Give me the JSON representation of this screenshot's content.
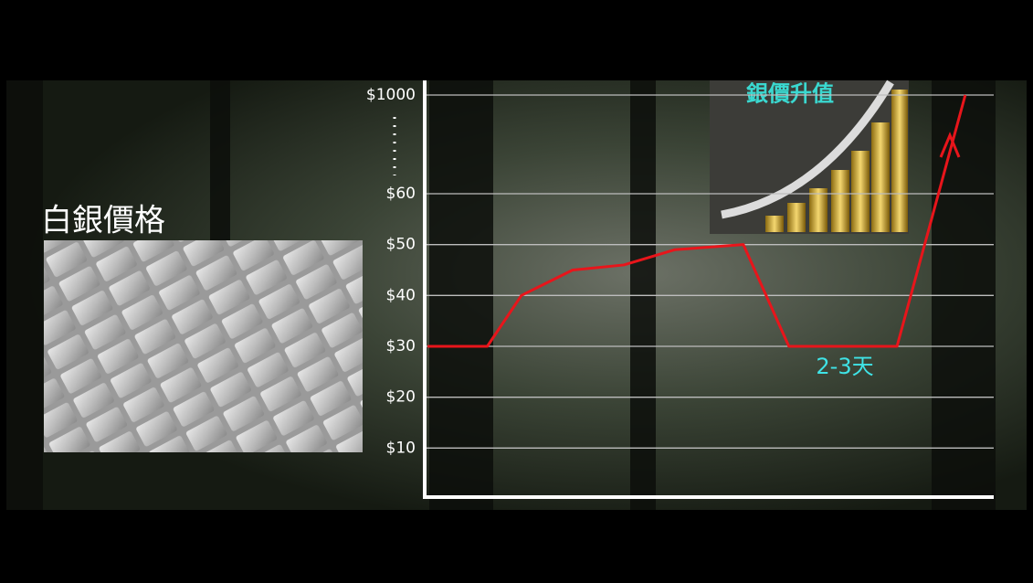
{
  "chart_data": {
    "type": "line",
    "title": "白銀價格",
    "inset_title": "銀價升值",
    "annotation": "2-3天",
    "x": [
      0.5,
      11,
      17,
      26,
      35,
      44,
      56,
      64,
      83,
      95
    ],
    "xlim": [
      0,
      100
    ],
    "series": [
      {
        "color": "#e8151b",
        "values": [
          30,
          30,
          40,
          45,
          46,
          49,
          50,
          30,
          30,
          1000
        ]
      }
    ],
    "ylim": [
      0,
      1000
    ],
    "axis_break": [
      60,
      1000
    ],
    "yticks": [
      {
        "value": 10,
        "label": "$10"
      },
      {
        "value": 20,
        "label": "$20"
      },
      {
        "value": 30,
        "label": "$30"
      },
      {
        "value": 40,
        "label": "$40"
      },
      {
        "value": 50,
        "label": "$50"
      },
      {
        "value": 60,
        "label": "$60"
      },
      {
        "value": 1000,
        "label": "$1000"
      }
    ],
    "grid": true
  }
}
